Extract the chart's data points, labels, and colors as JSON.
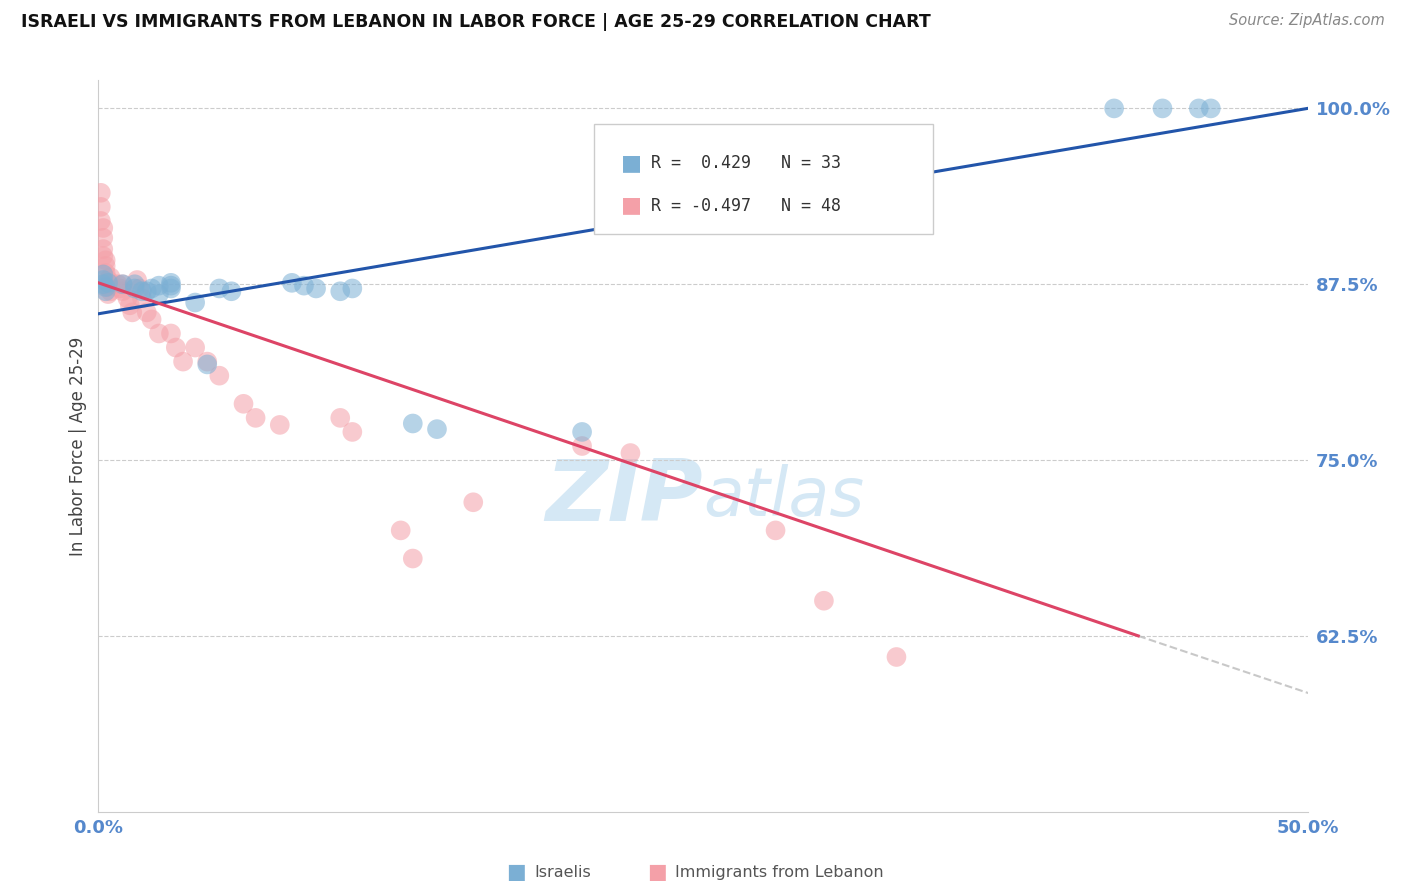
{
  "title": "ISRAELI VS IMMIGRANTS FROM LEBANON IN LABOR FORCE | AGE 25-29 CORRELATION CHART",
  "source": "Source: ZipAtlas.com",
  "ylabel": "In Labor Force | Age 25-29",
  "xlim": [
    0.0,
    0.5
  ],
  "ylim": [
    0.5,
    1.02
  ],
  "yticks": [
    0.625,
    0.75,
    0.875,
    1.0
  ],
  "ytick_labels": [
    "62.5%",
    "75.0%",
    "87.5%",
    "100.0%"
  ],
  "xticks": [
    0.0,
    0.1,
    0.2,
    0.3,
    0.4,
    0.5
  ],
  "xtick_labels": [
    "0.0%",
    "",
    "",
    "",
    "",
    "50.0%"
  ],
  "legend_R1": "R =  0.429",
  "legend_N1": "N = 33",
  "legend_R2": "R = -0.497",
  "legend_N2": "N = 48",
  "blue_color": "#7BAFD4",
  "pink_color": "#F4A0A8",
  "blue_line_color": "#2255AA",
  "pink_line_color": "#DD4466",
  "watermark_zip": "ZIP",
  "watermark_atlas": "atlas",
  "watermark_color": "#D5E8F5",
  "axis_color": "#5588CC",
  "grid_color": "#CCCCCC",
  "israelis_x": [
    0.002,
    0.002,
    0.002,
    0.003,
    0.003,
    0.004,
    0.01,
    0.015,
    0.015,
    0.018,
    0.02,
    0.022,
    0.025,
    0.025,
    0.03,
    0.03,
    0.03,
    0.04,
    0.045,
    0.05,
    0.055,
    0.08,
    0.085,
    0.09,
    0.1,
    0.105,
    0.13,
    0.14,
    0.2,
    0.42,
    0.44,
    0.455,
    0.46
  ],
  "israelis_y": [
    0.875,
    0.878,
    0.882,
    0.87,
    0.873,
    0.876,
    0.875,
    0.872,
    0.875,
    0.87,
    0.87,
    0.872,
    0.868,
    0.874,
    0.876,
    0.874,
    0.872,
    0.862,
    0.818,
    0.872,
    0.87,
    0.876,
    0.874,
    0.872,
    0.87,
    0.872,
    0.776,
    0.772,
    0.77,
    1.0,
    1.0,
    1.0,
    1.0
  ],
  "lebanon_x": [
    0.001,
    0.001,
    0.001,
    0.002,
    0.002,
    0.002,
    0.002,
    0.003,
    0.003,
    0.003,
    0.004,
    0.004,
    0.004,
    0.005,
    0.005,
    0.005,
    0.008,
    0.009,
    0.01,
    0.01,
    0.012,
    0.013,
    0.014,
    0.016,
    0.017,
    0.018,
    0.02,
    0.022,
    0.025,
    0.03,
    0.032,
    0.035,
    0.04,
    0.045,
    0.05,
    0.06,
    0.065,
    0.075,
    0.1,
    0.105,
    0.125,
    0.13,
    0.155,
    0.2,
    0.22,
    0.28,
    0.3,
    0.33
  ],
  "lebanon_y": [
    0.94,
    0.93,
    0.92,
    0.915,
    0.908,
    0.9,
    0.895,
    0.892,
    0.888,
    0.883,
    0.878,
    0.873,
    0.868,
    0.88,
    0.875,
    0.87,
    0.875,
    0.872,
    0.875,
    0.87,
    0.865,
    0.86,
    0.855,
    0.878,
    0.872,
    0.865,
    0.855,
    0.85,
    0.84,
    0.84,
    0.83,
    0.82,
    0.83,
    0.82,
    0.81,
    0.79,
    0.78,
    0.775,
    0.78,
    0.77,
    0.7,
    0.68,
    0.72,
    0.76,
    0.755,
    0.7,
    0.65,
    0.61
  ],
  "blue_trend": [
    0.0,
    0.5,
    0.854,
    1.0
  ],
  "pink_trend_solid": [
    0.0,
    0.43,
    0.876,
    0.625
  ],
  "pink_trend_dash": [
    0.43,
    0.75,
    0.625,
    0.44
  ]
}
